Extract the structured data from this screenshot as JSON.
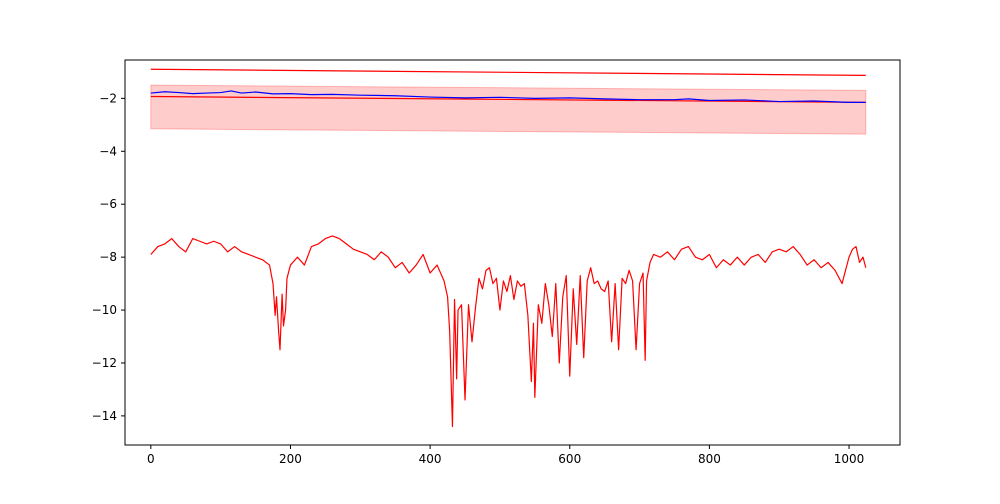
{
  "chart_data": {
    "type": "line",
    "title": "",
    "xlabel": "",
    "ylabel": "",
    "xlim": [
      -37,
      1073
    ],
    "ylim": [
      -15.1,
      -0.55
    ],
    "grid": false,
    "legend": "none",
    "x_ticks": [
      0,
      200,
      400,
      600,
      800,
      1000
    ],
    "x_tick_labels": [
      "0",
      "200",
      "400",
      "600",
      "800",
      "1000"
    ],
    "y_ticks": [
      -14,
      -12,
      -10,
      -8,
      -6,
      -4,
      -2
    ],
    "y_tick_labels": [
      "−14",
      "−12",
      "−10",
      "−8",
      "−6",
      "−4",
      "−2"
    ],
    "colors": {
      "red": "#ff0000",
      "blue": "#0000ff",
      "band_fill": "#ff0000",
      "axes": "#000000"
    },
    "series": [
      {
        "kind": "band",
        "color": "#ff0000",
        "x": [
          0,
          1024
        ],
        "upper": [
          -1.5,
          -1.7
        ],
        "lower": [
          -3.15,
          -3.35
        ]
      },
      {
        "kind": "line",
        "color": "#ff0000",
        "x": [
          0,
          1024
        ],
        "y": [
          -0.9,
          -1.13
        ]
      },
      {
        "kind": "line",
        "color": "#ff0000",
        "x": [
          0,
          1024
        ],
        "y": [
          -1.93,
          -2.15
        ]
      },
      {
        "kind": "line",
        "color": "#0000ff",
        "x": [
          0,
          20,
          40,
          60,
          80,
          100,
          115,
          130,
          150,
          175,
          200,
          230,
          260,
          300,
          350,
          400,
          450,
          500,
          550,
          600,
          650,
          700,
          750,
          770,
          800,
          850,
          900,
          950,
          1000,
          1024
        ],
        "y": [
          -1.8,
          -1.75,
          -1.78,
          -1.82,
          -1.8,
          -1.78,
          -1.72,
          -1.8,
          -1.76,
          -1.83,
          -1.82,
          -1.86,
          -1.85,
          -1.88,
          -1.9,
          -1.95,
          -1.98,
          -1.96,
          -2.0,
          -1.98,
          -2.02,
          -2.05,
          -2.05,
          -2.02,
          -2.08,
          -2.06,
          -2.12,
          -2.1,
          -2.15,
          -2.15
        ]
      },
      {
        "kind": "line",
        "color": "#ff0000",
        "x": [
          0,
          10,
          20,
          30,
          40,
          50,
          60,
          70,
          80,
          90,
          100,
          110,
          120,
          130,
          140,
          150,
          160,
          170,
          175,
          178,
          180,
          183,
          185,
          188,
          190,
          193,
          195,
          200,
          210,
          220,
          230,
          240,
          250,
          260,
          270,
          280,
          290,
          300,
          310,
          320,
          330,
          340,
          350,
          360,
          370,
          380,
          390,
          400,
          410,
          420,
          425,
          428,
          432,
          435,
          438,
          440,
          445,
          450,
          455,
          460,
          465,
          470,
          475,
          480,
          485,
          490,
          495,
          500,
          505,
          510,
          515,
          520,
          525,
          530,
          535,
          540,
          545,
          548,
          550,
          555,
          560,
          565,
          570,
          575,
          580,
          585,
          590,
          595,
          600,
          605,
          610,
          615,
          620,
          625,
          630,
          635,
          640,
          645,
          650,
          655,
          660,
          665,
          670,
          675,
          680,
          685,
          690,
          695,
          700,
          705,
          708,
          710,
          715,
          720,
          730,
          740,
          750,
          760,
          770,
          780,
          790,
          800,
          810,
          820,
          830,
          840,
          850,
          860,
          870,
          880,
          890,
          900,
          910,
          920,
          930,
          940,
          950,
          960,
          970,
          980,
          990,
          1000,
          1005,
          1010,
          1015,
          1020,
          1024
        ],
        "y": [
          -7.9,
          -7.6,
          -7.5,
          -7.3,
          -7.6,
          -7.8,
          -7.3,
          -7.4,
          -7.5,
          -7.4,
          -7.5,
          -7.8,
          -7.6,
          -7.8,
          -7.9,
          -8.0,
          -8.1,
          -8.3,
          -9.0,
          -10.2,
          -9.5,
          -10.8,
          -11.5,
          -9.4,
          -10.6,
          -10.0,
          -8.8,
          -8.3,
          -8.0,
          -8.3,
          -7.6,
          -7.5,
          -7.3,
          -7.2,
          -7.3,
          -7.5,
          -7.7,
          -7.8,
          -7.9,
          -8.1,
          -7.8,
          -8.0,
          -8.4,
          -8.2,
          -8.6,
          -8.3,
          -7.9,
          -8.6,
          -8.3,
          -8.9,
          -9.5,
          -10.8,
          -14.4,
          -9.6,
          -12.6,
          -10.0,
          -9.8,
          -13.4,
          -9.8,
          -11.2,
          -9.9,
          -8.8,
          -9.2,
          -8.5,
          -8.4,
          -9.0,
          -8.8,
          -10.0,
          -8.9,
          -9.3,
          -8.7,
          -9.6,
          -8.9,
          -9.1,
          -9.0,
          -10.2,
          -12.7,
          -10.5,
          -13.3,
          -9.8,
          -10.5,
          -9.0,
          -9.8,
          -11.0,
          -9.0,
          -12.0,
          -9.5,
          -8.7,
          -12.5,
          -9.2,
          -11.3,
          -8.7,
          -11.8,
          -8.9,
          -8.4,
          -9.0,
          -8.9,
          -9.2,
          -9.3,
          -8.9,
          -11.2,
          -9.0,
          -11.5,
          -8.8,
          -9.0,
          -8.5,
          -8.9,
          -11.5,
          -9.0,
          -8.6,
          -11.9,
          -8.9,
          -8.2,
          -7.9,
          -8.0,
          -7.8,
          -8.1,
          -7.7,
          -7.6,
          -8.0,
          -8.1,
          -7.9,
          -8.4,
          -8.1,
          -8.3,
          -8.0,
          -8.3,
          -8.0,
          -7.9,
          -8.2,
          -7.8,
          -7.7,
          -7.8,
          -7.6,
          -7.9,
          -8.3,
          -8.1,
          -8.4,
          -8.2,
          -8.5,
          -9.0,
          -8.0,
          -7.7,
          -7.6,
          -8.2,
          -8.0,
          -8.4
        ]
      }
    ]
  }
}
